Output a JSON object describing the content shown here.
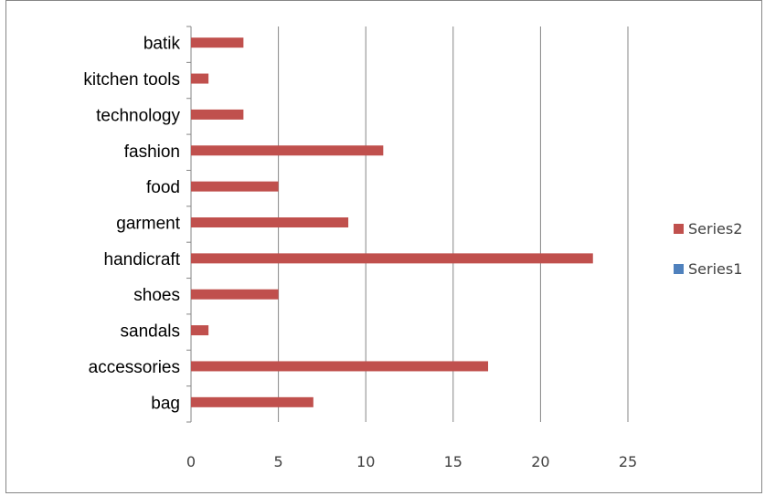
{
  "chart_data": {
    "type": "bar",
    "orientation": "horizontal",
    "categories": [
      "bag",
      "accessories",
      "sandals",
      "shoes",
      "handicraft",
      "garment",
      "food",
      "fashion",
      "technology",
      "kitchen tools",
      "batik"
    ],
    "series": [
      {
        "name": "Series2",
        "values": [
          7,
          17,
          1,
          5,
          23,
          9,
          5,
          11,
          3,
          1,
          3
        ],
        "color": "#c0504d"
      },
      {
        "name": "Series1",
        "values": [
          0,
          0,
          0,
          0,
          0,
          0,
          0,
          0,
          0,
          0,
          0
        ],
        "color": "#4f81bd"
      }
    ],
    "xlim": [
      0,
      25
    ],
    "xticks": [
      0,
      5,
      10,
      15,
      20,
      25
    ],
    "grid": "vertical",
    "legend": "right",
    "xlabel": "",
    "ylabel": "",
    "title": ""
  }
}
